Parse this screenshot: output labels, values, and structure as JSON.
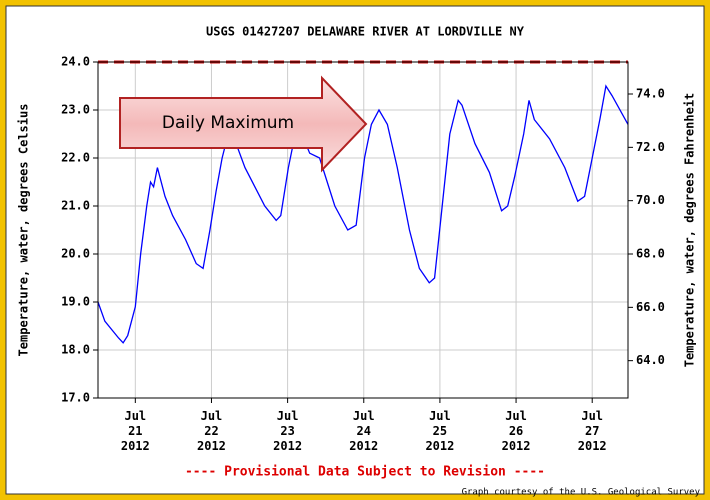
{
  "chart_data": {
    "type": "line",
    "title": "USGS 01427207 DELAWARE RIVER AT LORDVILLE NY",
    "y_label": "Temperature, water, degrees Celsius",
    "y2_label": "Temperature, water, degrees Fahrenheit",
    "xlim": [
      20.51,
      27.47
    ],
    "xticks": [
      {
        "value": 21,
        "label": "Jul 21 2012"
      },
      {
        "value": 22,
        "label": "Jul 22 2012"
      },
      {
        "value": 23,
        "label": "Jul 23 2012"
      },
      {
        "value": 24,
        "label": "Jul 24 2012"
      },
      {
        "value": 25,
        "label": "Jul 25 2012"
      },
      {
        "value": 26,
        "label": "Jul 26 2012"
      },
      {
        "value": 27,
        "label": "Jul 27 2012"
      }
    ],
    "ylim": [
      17,
      24
    ],
    "yticks": [
      {
        "value": 17,
        "label": "17.0"
      },
      {
        "value": 18,
        "label": "18.0"
      },
      {
        "value": 19,
        "label": "19.0"
      },
      {
        "value": 20,
        "label": "20.0"
      },
      {
        "value": 21,
        "label": "21.0"
      },
      {
        "value": 22,
        "label": "22.0"
      },
      {
        "value": 23,
        "label": "23.0"
      },
      {
        "value": 24,
        "label": "24.0"
      }
    ],
    "y2lim": [
      62.6,
      75.2
    ],
    "y2ticks": [
      {
        "value": 64,
        "label": "64.0"
      },
      {
        "value": 66,
        "label": "66.0"
      },
      {
        "value": 68,
        "label": "68.0"
      },
      {
        "value": 70,
        "label": "70.0"
      },
      {
        "value": 72,
        "label": "72.0"
      },
      {
        "value": 74,
        "label": "74.0"
      }
    ],
    "grid": true,
    "reference_line": {
      "value": 24,
      "color": "#cc1111"
    },
    "series": [
      {
        "name": "Temperature",
        "color": "#0000ff",
        "x": [
          20.51,
          20.6,
          20.78,
          20.84,
          20.9,
          21.0,
          21.07,
          21.15,
          21.2,
          21.24,
          21.29,
          21.39,
          21.49,
          21.66,
          21.8,
          21.89,
          21.98,
          22.06,
          22.14,
          22.22,
          22.3,
          22.44,
          22.57,
          22.7,
          22.85,
          22.91,
          23.01,
          23.1,
          23.16,
          23.29,
          23.42,
          23.62,
          23.79,
          23.9,
          24.01,
          24.1,
          24.2,
          24.31,
          24.44,
          24.6,
          24.73,
          24.86,
          24.93,
          25.03,
          25.13,
          25.24,
          25.29,
          25.46,
          25.65,
          25.81,
          25.89,
          25.98,
          26.1,
          26.17,
          26.24,
          26.44,
          26.64,
          26.81,
          26.9,
          27.0,
          27.1,
          27.18,
          27.26,
          27.47
        ],
        "values": [
          19.0,
          18.6,
          18.25,
          18.15,
          18.3,
          18.9,
          20.0,
          21.0,
          21.5,
          21.4,
          21.8,
          21.2,
          20.8,
          20.3,
          19.8,
          19.7,
          20.5,
          21.3,
          22.0,
          22.5,
          22.4,
          21.8,
          21.4,
          21.0,
          20.7,
          20.8,
          21.8,
          22.5,
          22.6,
          22.1,
          22.0,
          21.0,
          20.5,
          20.6,
          22.0,
          22.7,
          23.0,
          22.7,
          21.8,
          20.5,
          19.7,
          19.4,
          19.5,
          21.0,
          22.5,
          23.2,
          23.1,
          22.3,
          21.7,
          20.9,
          21.0,
          21.6,
          22.5,
          23.2,
          22.8,
          22.4,
          21.8,
          21.1,
          21.2,
          22.0,
          22.8,
          23.5,
          23.3,
          22.7
        ]
      }
    ],
    "annotation": "Daily Maximum",
    "footer": "---- Provisional Data Subject to Revision ----",
    "credit": "Graph courtesy of the U.S. Geological Survey"
  }
}
